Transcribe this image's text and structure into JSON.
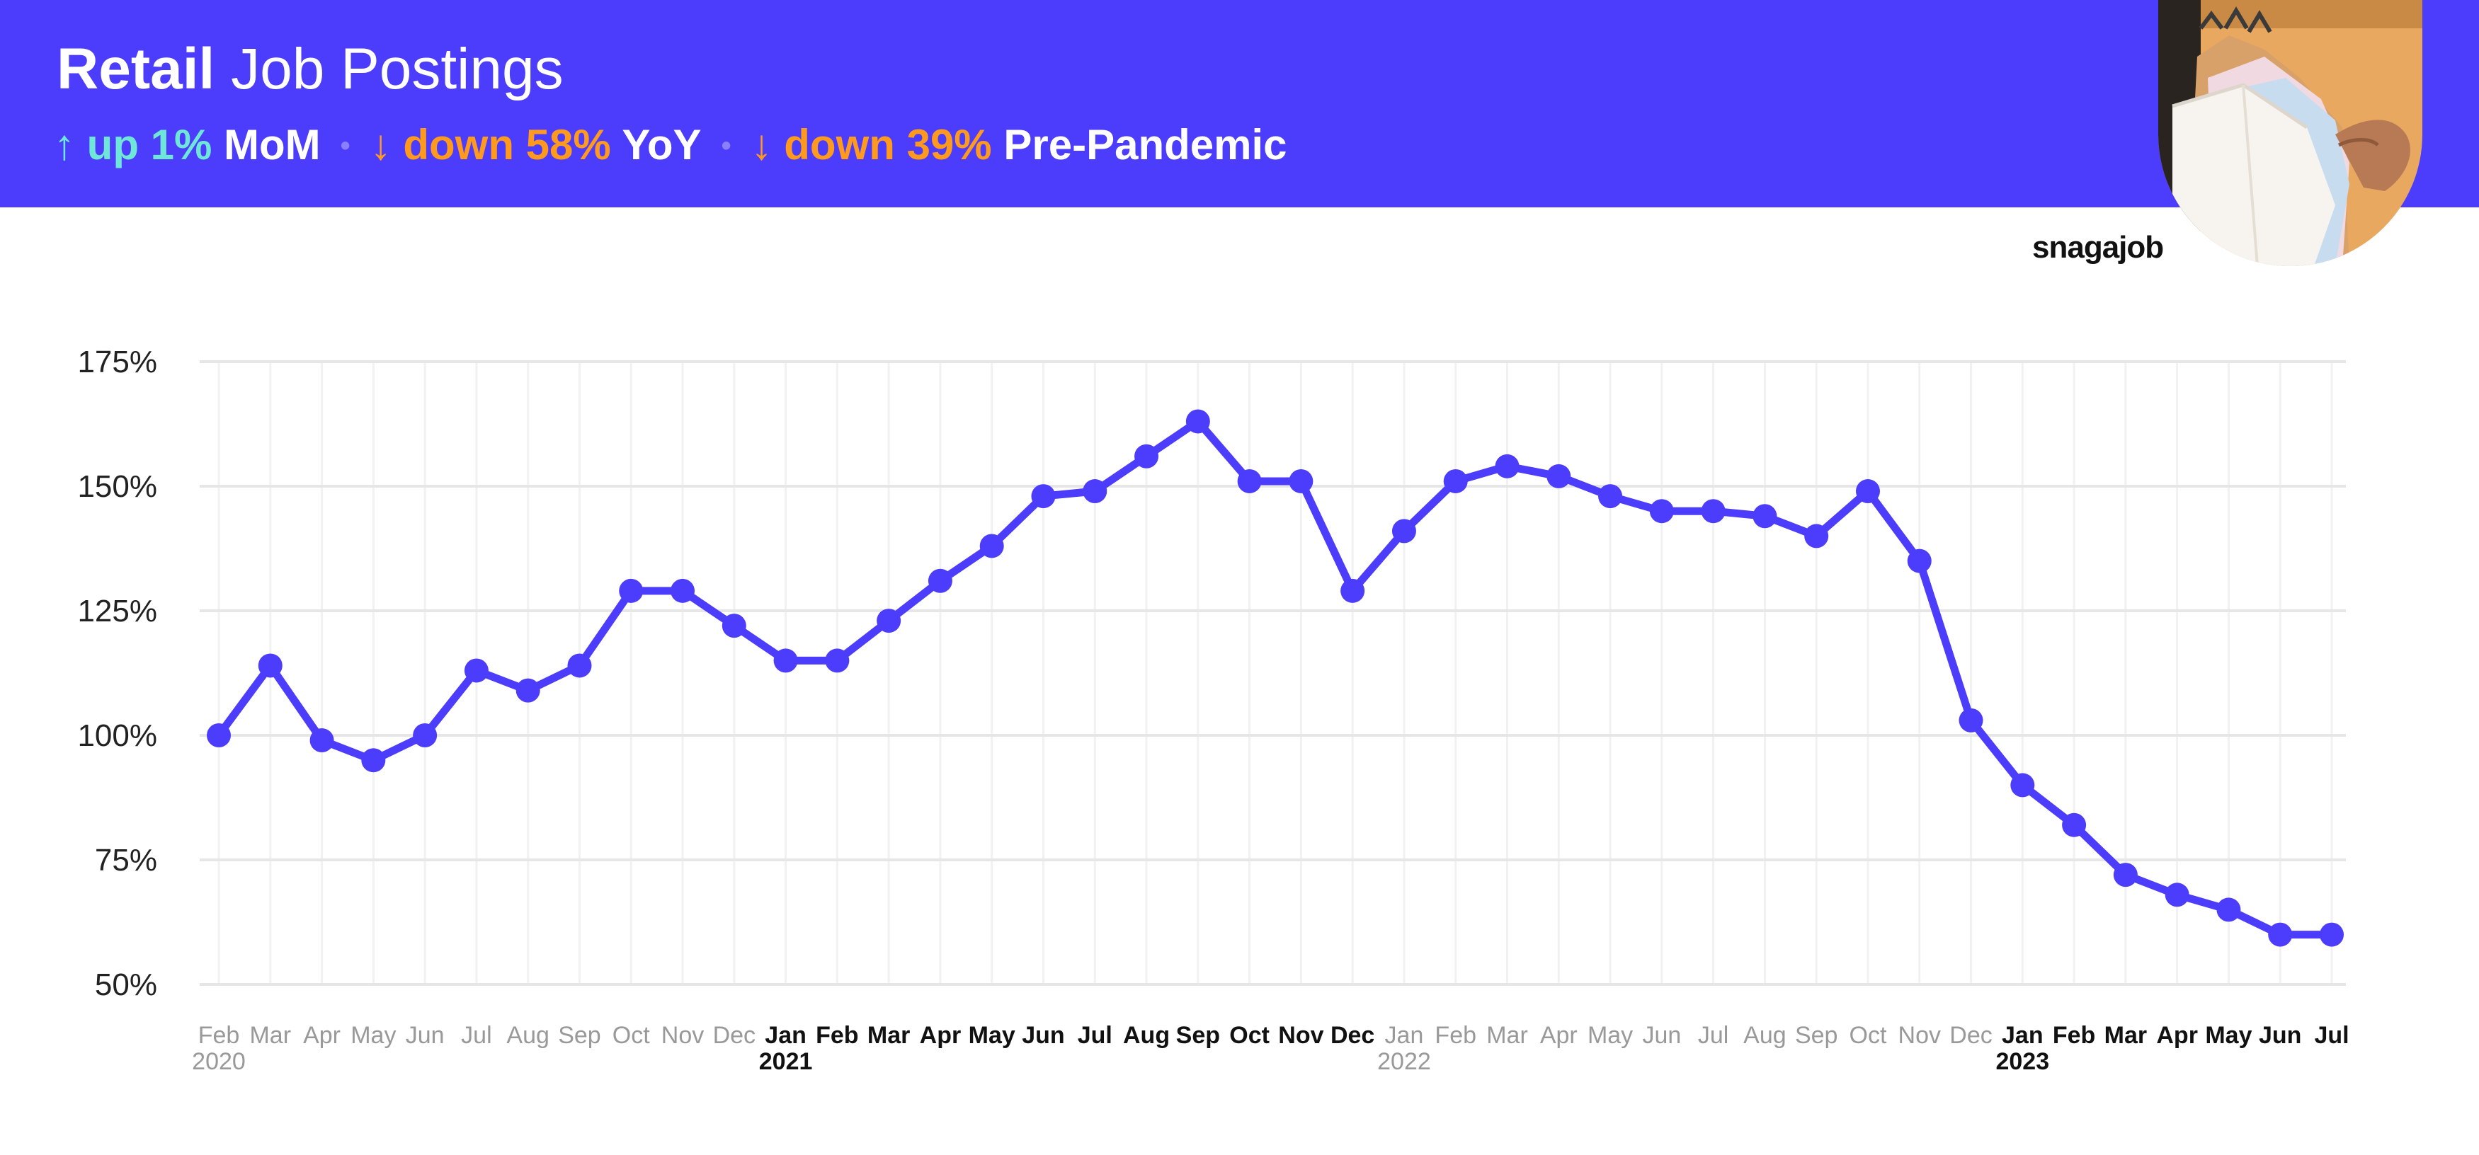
{
  "header": {
    "title_bold": "Retail",
    "title_light": "Job Postings",
    "stats": [
      {
        "direction": "up",
        "arrow": "↑",
        "value": "up 1%",
        "label": "MoM"
      },
      {
        "direction": "down",
        "arrow": "↓",
        "value": "down 58%",
        "label": "YoY"
      },
      {
        "direction": "down",
        "arrow": "↓",
        "value": "down 39%",
        "label": "Pre-Pandemic"
      }
    ],
    "separator": "•"
  },
  "brand": "snagajob",
  "colors": {
    "header_bg": "#4c3dfc",
    "line": "#4c3dfc",
    "up": "#6ee7d9",
    "down": "#ff9a1f",
    "grid": "#e6e6e6",
    "tick_month": "#999999",
    "tick_jan": "#111111"
  },
  "chart_data": {
    "type": "line",
    "title": "",
    "xlabel": "",
    "ylabel": "",
    "ylim": [
      50,
      175
    ],
    "yticks": [
      50,
      75,
      100,
      125,
      150,
      175
    ],
    "y_tick_format": "%",
    "grid": true,
    "categories": [
      "Feb",
      "Mar",
      "Apr",
      "May",
      "Jun",
      "Jul",
      "Aug",
      "Sep",
      "Oct",
      "Nov",
      "Dec",
      "Jan",
      "Feb",
      "Mar",
      "Apr",
      "May",
      "Jun",
      "Jul",
      "Aug",
      "Sep",
      "Oct",
      "Nov",
      "Dec",
      "Jan",
      "Feb",
      "Mar",
      "Apr",
      "May",
      "Jun",
      "Jul",
      "Aug",
      "Sep",
      "Oct",
      "Nov",
      "Dec",
      "Jan",
      "Feb",
      "Mar",
      "Apr",
      "May",
      "Jun",
      "Jul"
    ],
    "year_labels": [
      {
        "index": 0,
        "label": "2020"
      },
      {
        "index": 11,
        "label": "2021"
      },
      {
        "index": 23,
        "label": "2022"
      },
      {
        "index": 35,
        "label": "2023"
      }
    ],
    "bold_indices": [
      11,
      12,
      13,
      14,
      15,
      16,
      17,
      18,
      19,
      20,
      21,
      22,
      35,
      36,
      37,
      38,
      39,
      40,
      41
    ],
    "series": [
      {
        "values": [
          100,
          114,
          99,
          95,
          100,
          113,
          109,
          114,
          129,
          129,
          122,
          115,
          115,
          123,
          131,
          138,
          148,
          149,
          156,
          163,
          151,
          151,
          129,
          141,
          151,
          154,
          152,
          148,
          145,
          145,
          144,
          140,
          149,
          135,
          103,
          90,
          82,
          72,
          68,
          65,
          60,
          60
        ]
      }
    ]
  }
}
